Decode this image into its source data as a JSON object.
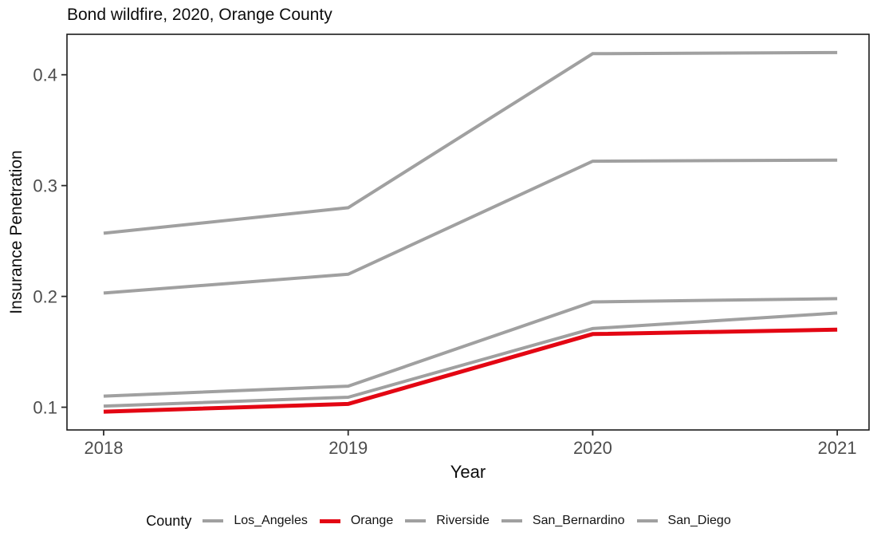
{
  "chart": {
    "title": "Bond wildfire, 2020, Orange County",
    "xlabel": "Year",
    "ylabel": "Insurance Penetration",
    "legend": {
      "title": "County"
    }
  },
  "chart_data": {
    "type": "line",
    "x": [
      2018,
      2019,
      2020,
      2021
    ],
    "xtick_labels": [
      "2018",
      "2019",
      "2020",
      "2021"
    ],
    "yticks": [
      0.1,
      0.2,
      0.3,
      0.4
    ],
    "ytick_labels": [
      "0.1",
      "0.2",
      "0.3",
      "0.4"
    ],
    "xlim": [
      2017.85,
      2021.13
    ],
    "ylim": [
      0.0795,
      0.4365
    ],
    "grid": false,
    "legend_position": "bottom",
    "title": "Bond wildfire, 2020, Orange County",
    "xlabel": "Year",
    "ylabel": "Insurance Penetration",
    "series": [
      {
        "name": "Los_Angeles",
        "color": "#a0a0a0",
        "line_width": 4,
        "values": [
          0.257,
          0.28,
          0.419,
          0.42
        ]
      },
      {
        "name": "Orange",
        "color": "#e30613",
        "line_width": 5,
        "values": [
          0.096,
          0.103,
          0.166,
          0.17
        ]
      },
      {
        "name": "Riverside",
        "color": "#a0a0a0",
        "line_width": 4,
        "values": [
          0.203,
          0.22,
          0.322,
          0.323
        ]
      },
      {
        "name": "San_Bernardino",
        "color": "#a0a0a0",
        "line_width": 4,
        "values": [
          0.11,
          0.119,
          0.195,
          0.198
        ]
      },
      {
        "name": "San_Diego",
        "color": "#a0a0a0",
        "line_width": 4,
        "values": [
          0.101,
          0.109,
          0.171,
          0.185
        ]
      }
    ],
    "draw_order": [
      "Los_Angeles",
      "Riverside",
      "San_Bernardino",
      "San_Diego",
      "Orange"
    ]
  },
  "style": {
    "panel_border_color": "#1a1a1a",
    "tick_mark_color": "#2b2b2b",
    "tick_label_color": "#4d4d4d",
    "background": "#ffffff"
  }
}
